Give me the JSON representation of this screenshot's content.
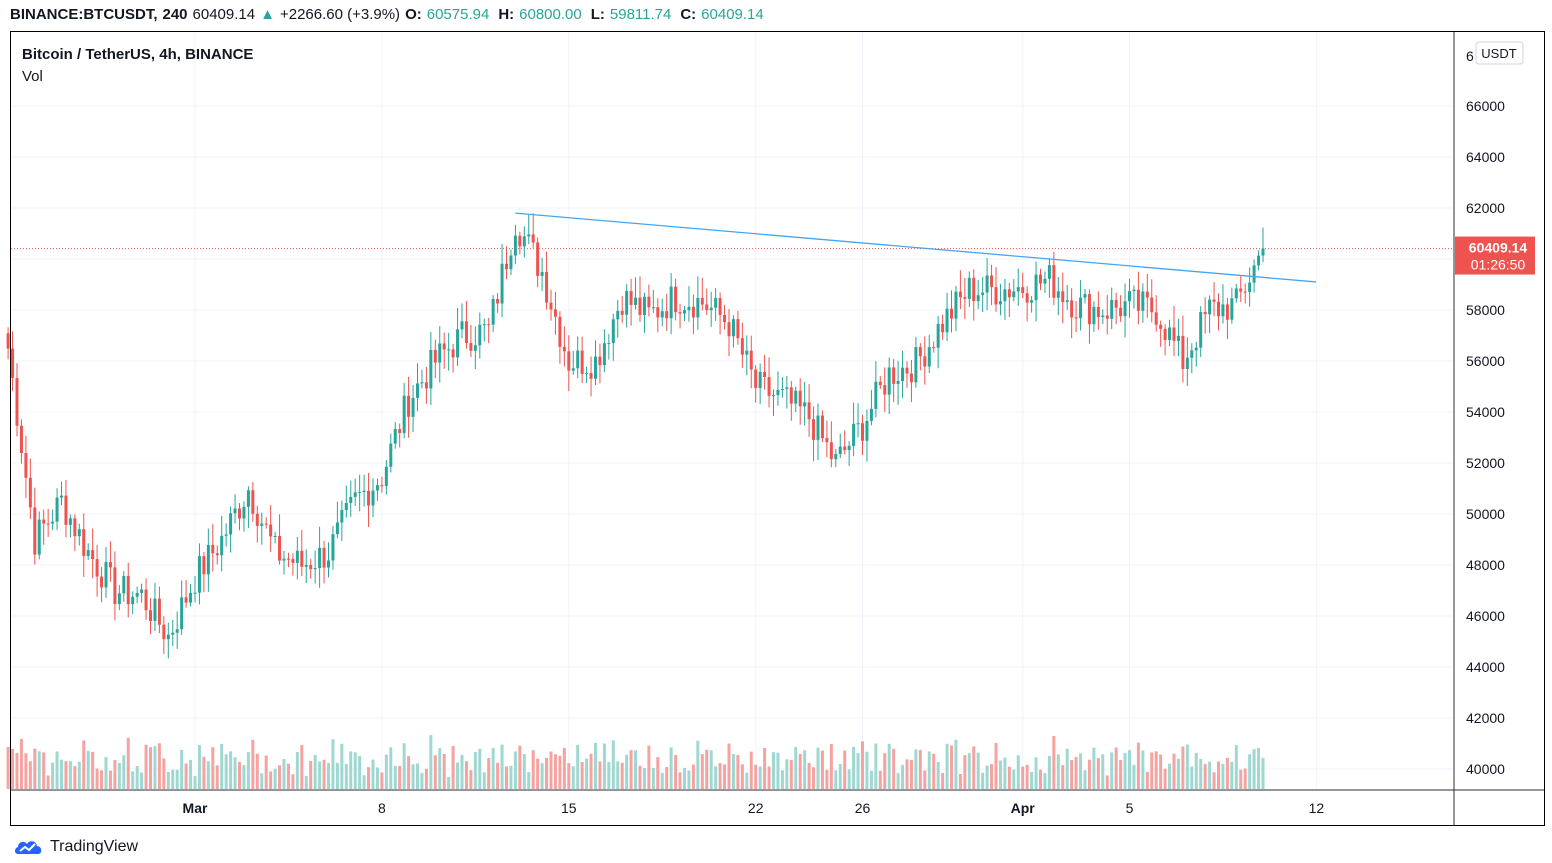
{
  "header": {
    "symbol": "BINANCE:BTCUSDT,",
    "interval": "240",
    "last": "60409.14",
    "change_arrow": "▲",
    "change": "+2266.60 (+3.9%)",
    "o_label": "O:",
    "o_value": "60575.94",
    "h_label": "H:",
    "h_value": "60800.00",
    "l_label": "L:",
    "l_value": "59811.74",
    "c_label": "C:",
    "c_value": "60409.14"
  },
  "legend": {
    "title": "Bitcoin / TetherUS, 4h, BINANCE",
    "vol_label": "Vol"
  },
  "price_scale": {
    "currency": "USDT",
    "ticks": [
      "66000",
      "64000",
      "62000",
      "60000",
      "58000",
      "56000",
      "54000",
      "52000",
      "50000",
      "48000",
      "46000",
      "44000",
      "42000",
      "40000"
    ],
    "top_tick_partial": "6",
    "last_price_label": "60409.14",
    "countdown": "01:26:50"
  },
  "time_scale": {
    "labels": [
      "Mar",
      "8",
      "15",
      "22",
      "26",
      "Apr",
      "5",
      "12"
    ]
  },
  "footer": {
    "brand": "TradingView",
    "logo_icon": "tradingview-cloud-logo-icon"
  },
  "colors": {
    "up": "#26a69a",
    "down": "#ef5350",
    "vol_up": "#9fd7d1",
    "vol_down": "#f4a3a1",
    "trendline": "#42a5f5",
    "last_price_line": "#ef5350",
    "grid": "#f0f3fa"
  },
  "chart_data": {
    "type": "candlestick",
    "title": "Bitcoin / TetherUS, 4h, BINANCE",
    "symbol": "BTCUSDT",
    "exchange": "BINANCE",
    "interval": "4h",
    "currency": "USDT",
    "ylim": [
      39000,
      67500
    ],
    "yticks": [
      40000,
      42000,
      44000,
      46000,
      48000,
      50000,
      52000,
      54000,
      56000,
      58000,
      60000,
      62000,
      64000,
      66000
    ],
    "grid": true,
    "last_price": 60409.14,
    "trendline": {
      "start": {
        "date": "Mar 13",
        "price": 61800
      },
      "end": {
        "date": "Apr 10",
        "price": 59100
      }
    },
    "price_path": [
      {
        "date": "Feb 22",
        "price": 56500
      },
      {
        "date": "Feb 23",
        "price": 49000
      },
      {
        "date": "Feb 24",
        "price": 50500
      },
      {
        "date": "Feb 25",
        "price": 48500
      },
      {
        "date": "Feb 26",
        "price": 47000
      },
      {
        "date": "Feb 27",
        "price": 46800
      },
      {
        "date": "Feb 28",
        "price": 45200
      },
      {
        "date": "Mar 1",
        "price": 47500
      },
      {
        "date": "Mar 2",
        "price": 49000
      },
      {
        "date": "Mar 3",
        "price": 51000
      },
      {
        "date": "Mar 4",
        "price": 48500
      },
      {
        "date": "Mar 5",
        "price": 48000
      },
      {
        "date": "Mar 6",
        "price": 48500
      },
      {
        "date": "Mar 7",
        "price": 50500
      },
      {
        "date": "Mar 8",
        "price": 51500
      },
      {
        "date": "Mar 9",
        "price": 54500
      },
      {
        "date": "Mar 10",
        "price": 56000
      },
      {
        "date": "Mar 11",
        "price": 57000
      },
      {
        "date": "Mar 12",
        "price": 57200
      },
      {
        "date": "Mar 13",
        "price": 61500
      },
      {
        "date": "Mar 14",
        "price": 59500
      },
      {
        "date": "Mar 15",
        "price": 56000
      },
      {
        "date": "Mar 16",
        "price": 56000
      },
      {
        "date": "Mar 17",
        "price": 58500
      },
      {
        "date": "Mar 18",
        "price": 57800
      },
      {
        "date": "Mar 19",
        "price": 58500
      },
      {
        "date": "Mar 20",
        "price": 58300
      },
      {
        "date": "Mar 21",
        "price": 57500
      },
      {
        "date": "Mar 22",
        "price": 55000
      },
      {
        "date": "Mar 23",
        "price": 54500
      },
      {
        "date": "Mar 24",
        "price": 53800
      },
      {
        "date": "Mar 25",
        "price": 52000
      },
      {
        "date": "Mar 26",
        "price": 53500
      },
      {
        "date": "Mar 27",
        "price": 55500
      },
      {
        "date": "Mar 28",
        "price": 55900
      },
      {
        "date": "Mar 29",
        "price": 57500
      },
      {
        "date": "Mar 30",
        "price": 58800
      },
      {
        "date": "Mar 31",
        "price": 58800
      },
      {
        "date": "Apr 1",
        "price": 58900
      },
      {
        "date": "Apr 2",
        "price": 59200
      },
      {
        "date": "Apr 3",
        "price": 58200
      },
      {
        "date": "Apr 4",
        "price": 58000
      },
      {
        "date": "Apr 5",
        "price": 58200
      },
      {
        "date": "Apr 6",
        "price": 58000
      },
      {
        "date": "Apr 7",
        "price": 56000
      },
      {
        "date": "Apr 8",
        "price": 58000
      },
      {
        "date": "Apr 9",
        "price": 58200
      },
      {
        "date": "Apr 10",
        "price": 60409
      }
    ],
    "volume": {
      "label": "Vol",
      "notes": "histogram below price, colored by candle direction"
    }
  }
}
